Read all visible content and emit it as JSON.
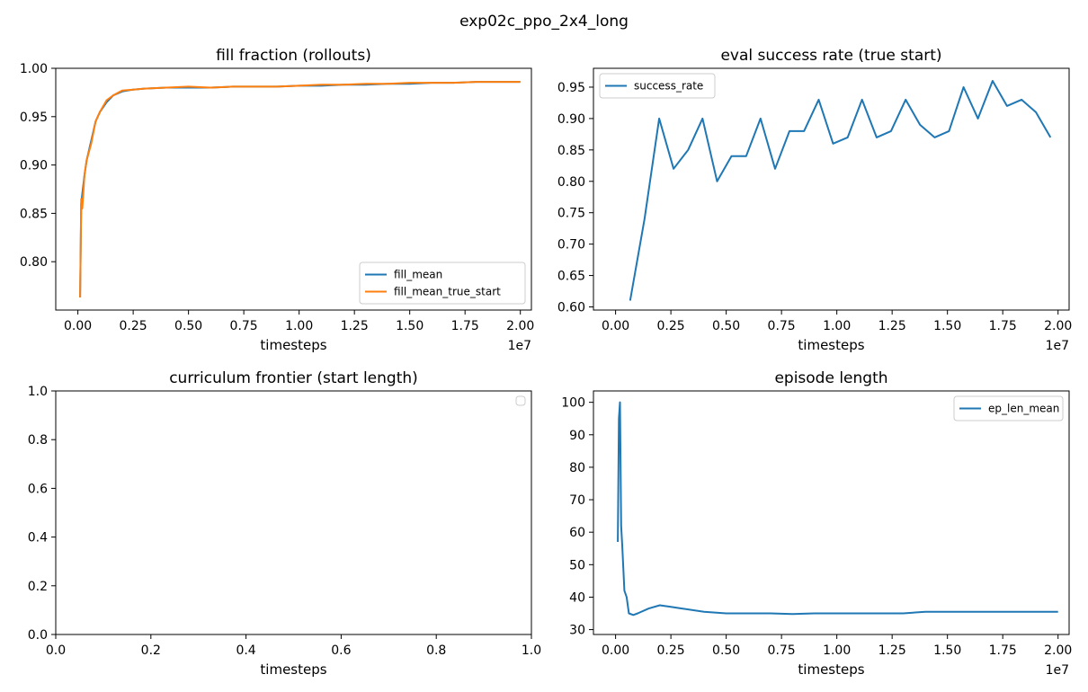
{
  "suptitle": "exp02c_ppo_2x4_long",
  "colors": {
    "blue": "#1f77b4",
    "orange": "#ff7f0e"
  },
  "chart_data": [
    {
      "type": "line",
      "title": "fill fraction (rollouts)",
      "xlabel": "timesteps",
      "x_offset_text": "1e7",
      "xlim": [
        -0.1,
        2.05
      ],
      "ylim": [
        0.75,
        1.0
      ],
      "xticks": [
        "0.00",
        "0.25",
        "0.50",
        "0.75",
        "1.00",
        "1.25",
        "1.50",
        "1.75",
        "2.00"
      ],
      "xtick_values": [
        0,
        0.25,
        0.5,
        0.75,
        1.0,
        1.25,
        1.5,
        1.75,
        2.0
      ],
      "yticks": [
        "0.80",
        "0.85",
        "0.90",
        "0.95",
        "1.00"
      ],
      "ytick_values": [
        0.8,
        0.85,
        0.9,
        0.95,
        1.0
      ],
      "legend_position": "lower-right",
      "series": [
        {
          "name": "fill_mean",
          "color": "#1f77b4",
          "x": [
            0.01,
            0.015,
            0.02,
            0.03,
            0.04,
            0.06,
            0.08,
            0.1,
            0.13,
            0.16,
            0.2,
            0.25,
            0.3,
            0.4,
            0.5,
            0.6,
            0.7,
            0.8,
            0.9,
            1.0,
            1.1,
            1.2,
            1.3,
            1.4,
            1.5,
            1.6,
            1.7,
            1.8,
            1.9,
            2.0
          ],
          "y": [
            0.763,
            0.86,
            0.87,
            0.89,
            0.905,
            0.925,
            0.945,
            0.955,
            0.965,
            0.972,
            0.976,
            0.978,
            0.979,
            0.98,
            0.98,
            0.98,
            0.981,
            0.981,
            0.981,
            0.982,
            0.982,
            0.983,
            0.983,
            0.984,
            0.984,
            0.985,
            0.985,
            0.986,
            0.986,
            0.986
          ]
        },
        {
          "name": "fill_mean_true_start",
          "color": "#ff7f0e",
          "x": [
            0.01,
            0.015,
            0.02,
            0.03,
            0.04,
            0.06,
            0.08,
            0.1,
            0.13,
            0.16,
            0.2,
            0.25,
            0.3,
            0.4,
            0.5,
            0.6,
            0.7,
            0.8,
            0.9,
            1.0,
            1.1,
            1.2,
            1.3,
            1.4,
            1.5,
            1.6,
            1.7,
            1.8,
            1.9,
            2.0
          ],
          "y": [
            0.763,
            0.865,
            0.855,
            0.89,
            0.905,
            0.922,
            0.945,
            0.955,
            0.967,
            0.972,
            0.977,
            0.978,
            0.979,
            0.98,
            0.981,
            0.98,
            0.981,
            0.981,
            0.981,
            0.982,
            0.983,
            0.983,
            0.984,
            0.984,
            0.985,
            0.985,
            0.985,
            0.986,
            0.986,
            0.986
          ]
        }
      ]
    },
    {
      "type": "line",
      "title": "eval success rate (true start)",
      "xlabel": "timesteps",
      "x_offset_text": "1e7",
      "xlim": [
        -0.1,
        2.05
      ],
      "ylim": [
        0.595,
        0.98
      ],
      "xticks": [
        "0.00",
        "0.25",
        "0.50",
        "0.75",
        "1.00",
        "1.25",
        "1.50",
        "1.75",
        "2.00"
      ],
      "xtick_values": [
        0,
        0.25,
        0.5,
        0.75,
        1.0,
        1.25,
        1.5,
        1.75,
        2.0
      ],
      "yticks": [
        "0.60",
        "0.65",
        "0.70",
        "0.75",
        "0.80",
        "0.85",
        "0.90",
        "0.95"
      ],
      "ytick_values": [
        0.6,
        0.65,
        0.7,
        0.75,
        0.8,
        0.85,
        0.9,
        0.95
      ],
      "legend_position": "upper-left",
      "series": [
        {
          "name": "success_rate",
          "color": "#1f77b4",
          "x": [
            0.066,
            0.131,
            0.197,
            0.262,
            0.328,
            0.393,
            0.459,
            0.524,
            0.59,
            0.655,
            0.721,
            0.786,
            0.852,
            0.918,
            0.983,
            1.049,
            1.114,
            1.18,
            1.245,
            1.311,
            1.376,
            1.442,
            1.507,
            1.573,
            1.638,
            1.704,
            1.769,
            1.835,
            1.9,
            1.966
          ],
          "y": [
            0.61,
            0.74,
            0.9,
            0.82,
            0.85,
            0.9,
            0.8,
            0.84,
            0.84,
            0.9,
            0.82,
            0.88,
            0.88,
            0.93,
            0.86,
            0.87,
            0.93,
            0.87,
            0.88,
            0.93,
            0.89,
            0.87,
            0.88,
            0.95,
            0.9,
            0.96,
            0.92,
            0.93,
            0.91,
            0.87
          ]
        }
      ]
    },
    {
      "type": "line",
      "title": "curriculum frontier (start length)",
      "xlabel": "timesteps",
      "xlim": [
        0,
        1
      ],
      "ylim": [
        0,
        1
      ],
      "xticks": [
        "0.0",
        "0.2",
        "0.4",
        "0.6",
        "0.8",
        "1.0"
      ],
      "xtick_values": [
        0,
        0.2,
        0.4,
        0.6,
        0.8,
        1.0
      ],
      "yticks": [
        "0.0",
        "0.2",
        "0.4",
        "0.6",
        "0.8",
        "1.0"
      ],
      "ytick_values": [
        0,
        0.2,
        0.4,
        0.6,
        0.8,
        1.0
      ],
      "legend_position": "upper-right",
      "series": []
    },
    {
      "type": "line",
      "title": "episode length",
      "xlabel": "timesteps",
      "x_offset_text": "1e7",
      "xlim": [
        -0.1,
        2.05
      ],
      "ylim": [
        28.5,
        103.5
      ],
      "xticks": [
        "0.00",
        "0.25",
        "0.50",
        "0.75",
        "1.00",
        "1.25",
        "1.50",
        "1.75",
        "2.00"
      ],
      "xtick_values": [
        0,
        0.25,
        0.5,
        0.75,
        1.0,
        1.25,
        1.5,
        1.75,
        2.0
      ],
      "yticks": [
        "30",
        "40",
        "50",
        "60",
        "70",
        "80",
        "90",
        "100"
      ],
      "ytick_values": [
        30,
        40,
        50,
        60,
        70,
        80,
        90,
        100
      ],
      "legend_position": "upper-right",
      "series": [
        {
          "name": "ep_len_mean",
          "color": "#1f77b4",
          "x": [
            0.01,
            0.015,
            0.02,
            0.025,
            0.03,
            0.04,
            0.05,
            0.06,
            0.08,
            0.1,
            0.15,
            0.2,
            0.25,
            0.3,
            0.4,
            0.5,
            0.6,
            0.7,
            0.8,
            0.9,
            1.0,
            1.1,
            1.2,
            1.3,
            1.4,
            1.5,
            1.6,
            1.7,
            1.8,
            1.9,
            2.0
          ],
          "y": [
            57,
            95,
            100,
            62,
            56,
            42,
            40,
            35,
            34.5,
            35,
            36.5,
            37.5,
            37,
            36.5,
            35.5,
            35,
            35,
            35,
            34.8,
            35,
            35,
            35,
            35,
            35,
            35.5,
            35.5,
            35.5,
            35.5,
            35.5,
            35.5,
            35.5
          ]
        }
      ]
    }
  ]
}
